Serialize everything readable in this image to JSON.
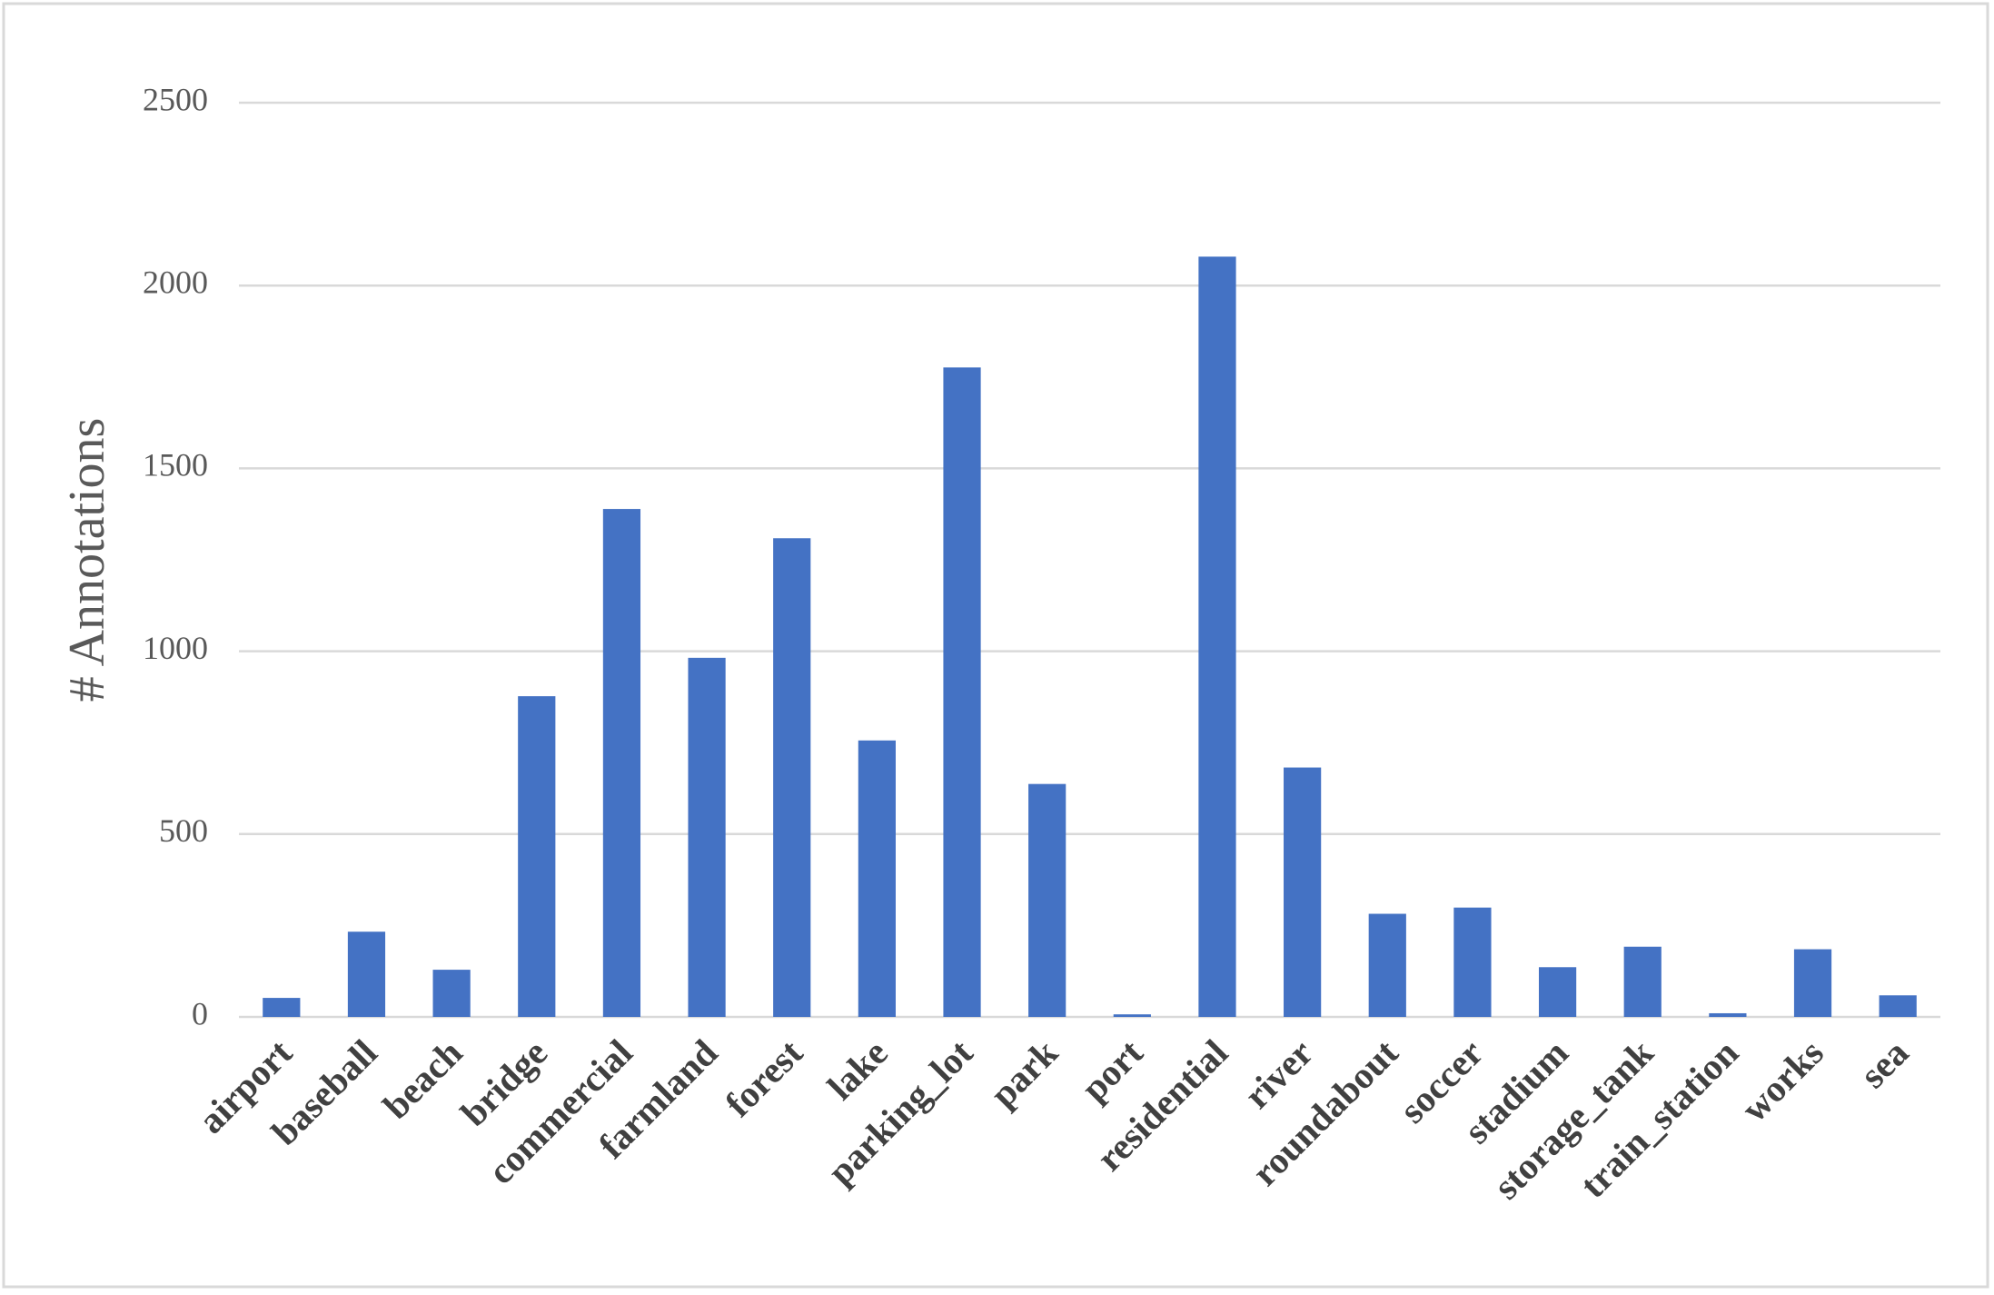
{
  "chart_data": {
    "type": "bar",
    "y_label": "# Annotations",
    "categories": [
      "airport",
      "baseball",
      "beach",
      "bridge",
      "commercial",
      "farmland",
      "forest",
      "lake",
      "parking_lot",
      "park",
      "port",
      "residential",
      "river",
      "roundabout",
      "soccer",
      "stadium",
      "storage_tank",
      "train_station",
      "works",
      "sea"
    ],
    "values": [
      52,
      233,
      129,
      877,
      1389,
      982,
      1309,
      756,
      1776,
      637,
      7,
      2079,
      682,
      282,
      299,
      136,
      192,
      10,
      185,
      59
    ],
    "color": "#4472c4",
    "ylim": [
      0,
      2500
    ],
    "yticks": [
      0,
      500,
      1000,
      1500,
      2000,
      2500
    ],
    "grid": true
  }
}
